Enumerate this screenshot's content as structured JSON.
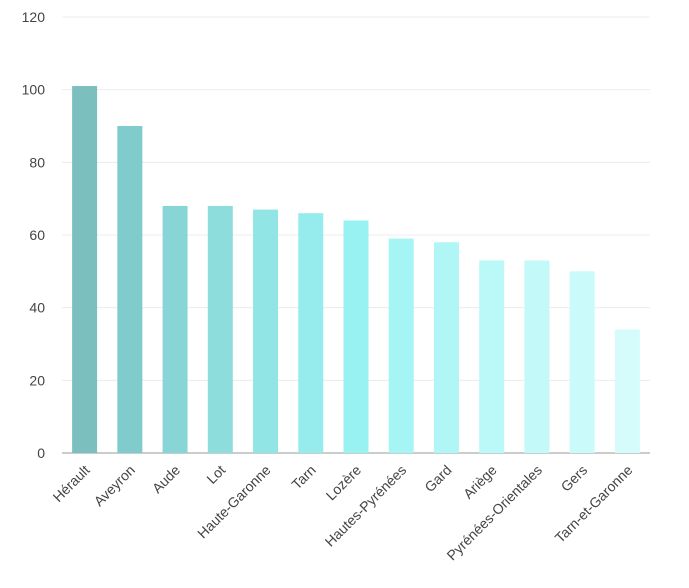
{
  "chart_data": {
    "type": "bar",
    "categories": [
      "Hérault",
      "Aveyron",
      "Aude",
      "Lot",
      "Haute-Garonne",
      "Tarn",
      "Lozère",
      "Hautes-Pyrénées",
      "Gard",
      "Ariège",
      "Pyrénées-Orientales",
      "Gers",
      "Tarn-et-Garonne"
    ],
    "values": [
      101,
      90,
      68,
      68,
      67,
      66,
      64,
      59,
      58,
      53,
      53,
      50,
      34
    ],
    "colors": [
      "#7bbfbf",
      "#80cbcb",
      "#87d5d5",
      "#8ddddd",
      "#92e5e5",
      "#96ecec",
      "#99f2f2",
      "#a6f5f5",
      "#b0f6f6",
      "#bbf8f8",
      "#c3f9f9",
      "#cbfafa",
      "#d6fbfb"
    ],
    "ylim": [
      0,
      120
    ],
    "yticks": [
      0,
      20,
      40,
      60,
      80,
      100,
      120
    ],
    "grid": true
  }
}
